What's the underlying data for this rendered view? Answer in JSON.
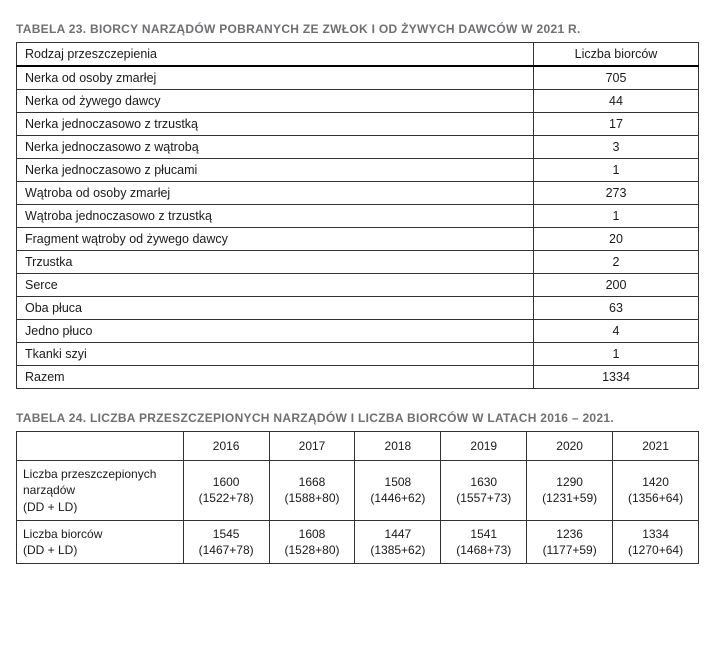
{
  "colors": {
    "title_color": "#6f6f72",
    "text_color": "#1a1a1a",
    "border_color": "#333333",
    "heavy_border_color": "#000000",
    "background": "#ffffff"
  },
  "typography": {
    "title_fontsize_pt": 9,
    "body_fontsize_pt": 9.5,
    "font_family": "Arial"
  },
  "table23": {
    "title": "TABELA 23. BIORCY NARZĄDÓW POBRANYCH ZE ZWŁOK I OD ŻYWYCH DAWCÓW W 2021 R.",
    "columns": [
      "Rodzaj przeszczepienia",
      "Liczba biorców"
    ],
    "rows": [
      {
        "label": "Nerka od osoby zmarłej",
        "count": "705"
      },
      {
        "label": "Nerka od żywego dawcy",
        "count": "44"
      },
      {
        "label": "Nerka jednoczasowo z trzustką",
        "count": "17"
      },
      {
        "label": "Nerka jednoczasowo z wątrobą",
        "count": "3"
      },
      {
        "label": "Nerka jednoczasowo z płucami",
        "count": "1"
      },
      {
        "label": "Wątroba od osoby zmarłej",
        "count": "273"
      },
      {
        "label": "Wątroba jednoczasowo z trzustką",
        "count": "1"
      },
      {
        "label": "Fragment wątroby od żywego dawcy",
        "count": "20"
      },
      {
        "label": "Trzustka",
        "count": "2"
      },
      {
        "label": "Serce",
        "count": "200"
      },
      {
        "label": "Oba płuca",
        "count": "63"
      },
      {
        "label": "Jedno płuco",
        "count": "4"
      },
      {
        "label": "Tkanki szyi",
        "count": "1"
      }
    ],
    "total": {
      "label": "Razem",
      "count": "1334"
    }
  },
  "table24": {
    "title": "TABELA 24. LICZBA PRZESZCZEPIONYCH NARZĄDÓW I LICZBA BIORCÓW W LATACH 2016 – 2021.",
    "years": [
      "2016",
      "2017",
      "2018",
      "2019",
      "2020",
      "2021"
    ],
    "row_labels": {
      "organs_l1": "Liczba przeszczepionych",
      "organs_l2": "narządów",
      "organs_l3": "(DD + LD)",
      "recipients_l1": "Liczba biorców",
      "recipients_l2": "(DD + LD)"
    },
    "organs": {
      "main": [
        "1600",
        "1668",
        "1508",
        "1630",
        "1290",
        "1420"
      ],
      "paren": [
        "(1522+78)",
        "(1588+80)",
        "(1446+62)",
        "(1557+73)",
        "(1231+59)",
        "(1356+64)"
      ]
    },
    "recipients": {
      "main": [
        "1545",
        "1608",
        "1447",
        "1541",
        "1236",
        "1334"
      ],
      "paren": [
        "(1467+78)",
        "(1528+80)",
        "(1385+62)",
        "(1468+73)",
        "(1177+59)",
        "(1270+64)"
      ]
    }
  }
}
